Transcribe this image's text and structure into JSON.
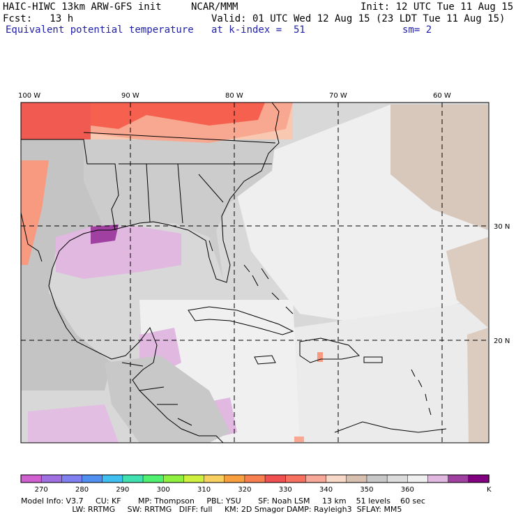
{
  "header": {
    "line1_left": "HAIC-HIWC 13km ARW-GFS init",
    "line1_mid": "NCAR/MMM",
    "line1_right": "Init: 12 UTC Tue 11 Aug 15",
    "line2_left": "Fcst:   13 h",
    "line2_right": "Valid: 01 UTC Wed 12 Aug 15 (23 LDT Tue 11 Aug 15)",
    "line3_left": "Equivalent potential temperature",
    "line3_mid": "at k-index =  51",
    "line3_right": "sm= 2"
  },
  "map": {
    "lon_labels": [
      "100 W",
      "90 W",
      "80 W",
      "70 W",
      "60 W"
    ],
    "lat_labels": [
      "30 N",
      "20 N"
    ]
  },
  "colorbar": {
    "unit": "K",
    "tick_labels": [
      "270",
      "280",
      "290",
      "300",
      "310",
      "320",
      "330",
      "340",
      "350",
      "360"
    ],
    "colors": [
      "#d060d0",
      "#a070e0",
      "#8080f0",
      "#5090f0",
      "#40c0f0",
      "#40e0b0",
      "#50f070",
      "#90f040",
      "#d0f040",
      "#f8d060",
      "#f8a040",
      "#f88050",
      "#f05050",
      "#f87060",
      "#f8a898",
      "#f8d8c8",
      "#d8c0b0",
      "#c8c8c8",
      "#dcdcdc",
      "#f0f0f0",
      "#e0b8e0",
      "#a040a0",
      "#800080"
    ]
  },
  "footer": {
    "line1": "Model Info: V3.7     CU: KF       MP: Thompson     PBL: YSU       SF: Noah LSM     13 km    51 levels    60 sec",
    "line2": "                     LW: RRTMG     SW: RRTMG   DIFF: full     KM: 2D Smagor DAMP: Rayleigh3  SFLAY: MM5"
  }
}
